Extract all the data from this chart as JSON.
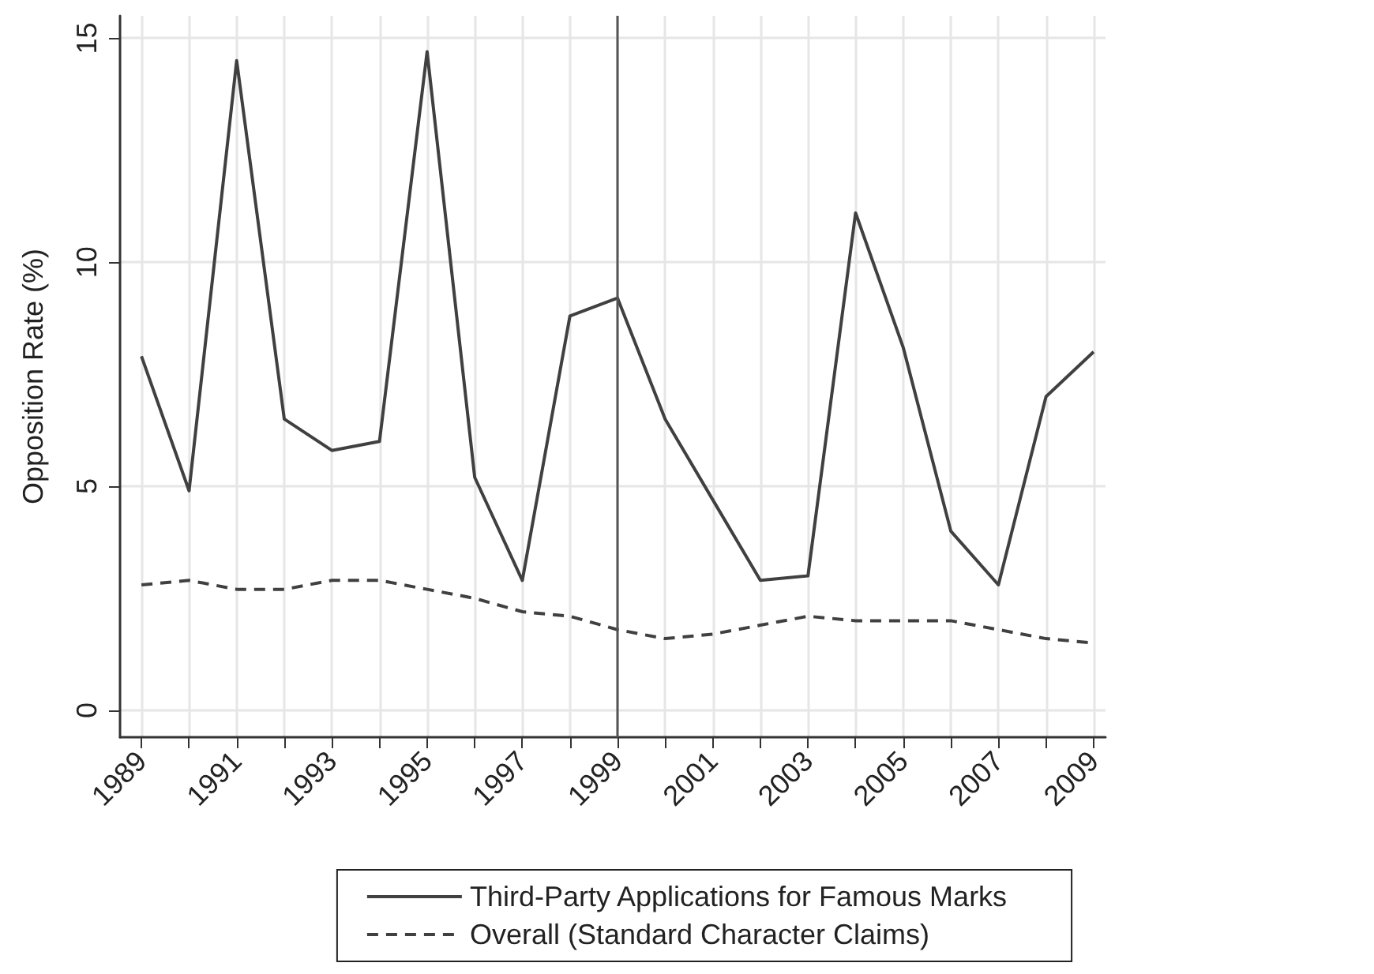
{
  "chart_data": {
    "type": "line",
    "ylabel": "Opposition Rate (%)",
    "x": [
      1989,
      1990,
      1991,
      1992,
      1993,
      1994,
      1995,
      1996,
      1997,
      1998,
      1999,
      2000,
      2001,
      2002,
      2003,
      2004,
      2005,
      2006,
      2007,
      2008,
      2009
    ],
    "series": [
      {
        "name": "Third-Party Applications for Famous Marks",
        "color": "#404040",
        "line_style": "solid",
        "values": [
          7.9,
          4.9,
          14.5,
          6.5,
          5.8,
          6.0,
          14.7,
          5.2,
          2.9,
          8.8,
          9.2,
          6.5,
          4.7,
          2.9,
          3.0,
          11.1,
          8.1,
          4.0,
          2.8,
          7.0,
          8.0
        ]
      },
      {
        "name": "Overall (Standard Character Claims)",
        "color": "#404040",
        "line_style": "dashed",
        "values": [
          2.8,
          2.9,
          2.7,
          2.7,
          2.9,
          2.9,
          2.7,
          2.5,
          2.2,
          2.1,
          1.8,
          1.6,
          1.7,
          1.9,
          2.1,
          2.0,
          2.0,
          2.0,
          1.8,
          1.6,
          1.5
        ]
      }
    ],
    "xlim": [
      1988.55,
      2009.25
    ],
    "xticks": [
      1989,
      {
        "value": 1990,
        "label": null
      },
      1991,
      {
        "value": 1992,
        "label": null
      },
      1993,
      {
        "value": 1994,
        "label": null
      },
      1995,
      {
        "value": 1996,
        "label": null
      },
      1997,
      {
        "value": 1998,
        "label": null
      },
      1999,
      {
        "value": 2000,
        "label": null
      },
      2001,
      {
        "value": 2002,
        "label": null
      },
      2003,
      {
        "value": 2004,
        "label": null
      },
      2005,
      {
        "value": 2006,
        "label": null
      },
      2007,
      {
        "value": 2008,
        "label": null
      },
      2009
    ],
    "ylim": [
      -0.6,
      15.5
    ],
    "yticks": [
      0,
      5,
      10,
      15
    ],
    "ref_lines": [
      {
        "axis": "x",
        "value": 1999,
        "color": "#555555"
      }
    ],
    "grid": true,
    "legend": "bottom",
    "marker": "none"
  }
}
